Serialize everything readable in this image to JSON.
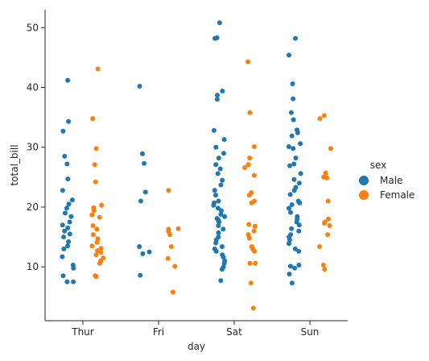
{
  "chart_data": {
    "type": "scatter",
    "title": "",
    "xlabel": "day",
    "ylabel": "total_bill",
    "categories": [
      "Thur",
      "Fri",
      "Sat",
      "Sun"
    ],
    "y_ticks": [
      10,
      20,
      30,
      40,
      50
    ],
    "ylim": [
      1,
      53
    ],
    "grid": false,
    "legend": {
      "title": "sex",
      "position": "right"
    },
    "series": [
      {
        "name": "Male",
        "color": "#1f77b4",
        "points": [
          {
            "day": "Thur",
            "total_bill": 41.2
          },
          {
            "day": "Thur",
            "total_bill": 34.3
          },
          {
            "day": "Thur",
            "total_bill": 32.7
          },
          {
            "day": "Thur",
            "total_bill": 28.5
          },
          {
            "day": "Thur",
            "total_bill": 27.2
          },
          {
            "day": "Thur",
            "total_bill": 24.7
          },
          {
            "day": "Thur",
            "total_bill": 22.8
          },
          {
            "day": "Thur",
            "total_bill": 21.2
          },
          {
            "day": "Thur",
            "total_bill": 20.5
          },
          {
            "day": "Thur",
            "total_bill": 19.8
          },
          {
            "day": "Thur",
            "total_bill": 19.0
          },
          {
            "day": "Thur",
            "total_bill": 18.4
          },
          {
            "day": "Thur",
            "total_bill": 17.5
          },
          {
            "day": "Thur",
            "total_bill": 17.0
          },
          {
            "day": "Thur",
            "total_bill": 16.5
          },
          {
            "day": "Thur",
            "total_bill": 16.0
          },
          {
            "day": "Thur",
            "total_bill": 15.5
          },
          {
            "day": "Thur",
            "total_bill": 15.0
          },
          {
            "day": "Thur",
            "total_bill": 14.2
          },
          {
            "day": "Thur",
            "total_bill": 13.5
          },
          {
            "day": "Thur",
            "total_bill": 13.0
          },
          {
            "day": "Thur",
            "total_bill": 11.7
          },
          {
            "day": "Thur",
            "total_bill": 10.3
          },
          {
            "day": "Thur",
            "total_bill": 9.8
          },
          {
            "day": "Thur",
            "total_bill": 8.5
          },
          {
            "day": "Thur",
            "total_bill": 7.5
          },
          {
            "day": "Thur",
            "total_bill": 7.5
          },
          {
            "day": "Fri",
            "total_bill": 40.2
          },
          {
            "day": "Fri",
            "total_bill": 28.9
          },
          {
            "day": "Fri",
            "total_bill": 27.3
          },
          {
            "day": "Fri",
            "total_bill": 22.5
          },
          {
            "day": "Fri",
            "total_bill": 21.0
          },
          {
            "day": "Fri",
            "total_bill": 13.4
          },
          {
            "day": "Fri",
            "total_bill": 12.5
          },
          {
            "day": "Fri",
            "total_bill": 12.2
          },
          {
            "day": "Fri",
            "total_bill": 8.6
          },
          {
            "day": "Sat",
            "total_bill": 50.8
          },
          {
            "day": "Sat",
            "total_bill": 48.3
          },
          {
            "day": "Sat",
            "total_bill": 48.2
          },
          {
            "day": "Sat",
            "total_bill": 39.4
          },
          {
            "day": "Sat",
            "total_bill": 38.7
          },
          {
            "day": "Sat",
            "total_bill": 38.0
          },
          {
            "day": "Sat",
            "total_bill": 32.8
          },
          {
            "day": "Sat",
            "total_bill": 31.3
          },
          {
            "day": "Sat",
            "total_bill": 30.0
          },
          {
            "day": "Sat",
            "total_bill": 29.0
          },
          {
            "day": "Sat",
            "total_bill": 28.2
          },
          {
            "day": "Sat",
            "total_bill": 27.1
          },
          {
            "day": "Sat",
            "total_bill": 26.4
          },
          {
            "day": "Sat",
            "total_bill": 25.6
          },
          {
            "day": "Sat",
            "total_bill": 24.5
          },
          {
            "day": "Sat",
            "total_bill": 23.7
          },
          {
            "day": "Sat",
            "total_bill": 22.8
          },
          {
            "day": "Sat",
            "total_bill": 22.0
          },
          {
            "day": "Sat",
            "total_bill": 21.0
          },
          {
            "day": "Sat",
            "total_bill": 20.7
          },
          {
            "day": "Sat",
            "total_bill": 20.3
          },
          {
            "day": "Sat",
            "total_bill": 19.8
          },
          {
            "day": "Sat",
            "total_bill": 19.4
          },
          {
            "day": "Sat",
            "total_bill": 18.8
          },
          {
            "day": "Sat",
            "total_bill": 18.4
          },
          {
            "day": "Sat",
            "total_bill": 18.1
          },
          {
            "day": "Sat",
            "total_bill": 17.8
          },
          {
            "day": "Sat",
            "total_bill": 17.5
          },
          {
            "day": "Sat",
            "total_bill": 16.9
          },
          {
            "day": "Sat",
            "total_bill": 16.3
          },
          {
            "day": "Sat",
            "total_bill": 15.7
          },
          {
            "day": "Sat",
            "total_bill": 15.0
          },
          {
            "day": "Sat",
            "total_bill": 14.5
          },
          {
            "day": "Sat",
            "total_bill": 14.0
          },
          {
            "day": "Sat",
            "total_bill": 13.4
          },
          {
            "day": "Sat",
            "total_bill": 13.0
          },
          {
            "day": "Sat",
            "total_bill": 12.6
          },
          {
            "day": "Sat",
            "total_bill": 12.0
          },
          {
            "day": "Sat",
            "total_bill": 11.6
          },
          {
            "day": "Sat",
            "total_bill": 11.0
          },
          {
            "day": "Sat",
            "total_bill": 10.6
          },
          {
            "day": "Sat",
            "total_bill": 10.0
          },
          {
            "day": "Sat",
            "total_bill": 9.6
          },
          {
            "day": "Sat",
            "total_bill": 7.7
          },
          {
            "day": "Sun",
            "total_bill": 48.2
          },
          {
            "day": "Sun",
            "total_bill": 45.4
          },
          {
            "day": "Sun",
            "total_bill": 40.6
          },
          {
            "day": "Sun",
            "total_bill": 38.1
          },
          {
            "day": "Sun",
            "total_bill": 35.8
          },
          {
            "day": "Sun",
            "total_bill": 34.6
          },
          {
            "day": "Sun",
            "total_bill": 32.9
          },
          {
            "day": "Sun",
            "total_bill": 32.4
          },
          {
            "day": "Sun",
            "total_bill": 31.9
          },
          {
            "day": "Sun",
            "total_bill": 30.6
          },
          {
            "day": "Sun",
            "total_bill": 30.1
          },
          {
            "day": "Sun",
            "total_bill": 29.8
          },
          {
            "day": "Sun",
            "total_bill": 28.2
          },
          {
            "day": "Sun",
            "total_bill": 27.2
          },
          {
            "day": "Sun",
            "total_bill": 26.9
          },
          {
            "day": "Sun",
            "total_bill": 25.6
          },
          {
            "day": "Sun",
            "total_bill": 24.6
          },
          {
            "day": "Sun",
            "total_bill": 24.0
          },
          {
            "day": "Sun",
            "total_bill": 23.3
          },
          {
            "day": "Sun",
            "total_bill": 22.8
          },
          {
            "day": "Sun",
            "total_bill": 22.1
          },
          {
            "day": "Sun",
            "total_bill": 21.0
          },
          {
            "day": "Sun",
            "total_bill": 20.7
          },
          {
            "day": "Sun",
            "total_bill": 20.4
          },
          {
            "day": "Sun",
            "total_bill": 19.8
          },
          {
            "day": "Sun",
            "total_bill": 19.1
          },
          {
            "day": "Sun",
            "total_bill": 18.4
          },
          {
            "day": "Sun",
            "total_bill": 18.0
          },
          {
            "day": "Sun",
            "total_bill": 17.5
          },
          {
            "day": "Sun",
            "total_bill": 17.0
          },
          {
            "day": "Sun",
            "total_bill": 16.4
          },
          {
            "day": "Sun",
            "total_bill": 16.0
          },
          {
            "day": "Sun",
            "total_bill": 15.4
          },
          {
            "day": "Sun",
            "total_bill": 15.0
          },
          {
            "day": "Sun",
            "total_bill": 14.5
          },
          {
            "day": "Sun",
            "total_bill": 13.9
          },
          {
            "day": "Sun",
            "total_bill": 13.0
          },
          {
            "day": "Sun",
            "total_bill": 12.6
          },
          {
            "day": "Sun",
            "total_bill": 10.3
          },
          {
            "day": "Sun",
            "total_bill": 10.1
          },
          {
            "day": "Sun",
            "total_bill": 9.8
          },
          {
            "day": "Sun",
            "total_bill": 8.8
          },
          {
            "day": "Sun",
            "total_bill": 7.3
          }
        ]
      },
      {
        "name": "Female",
        "color": "#ff7f0e",
        "points": [
          {
            "day": "Thur",
            "total_bill": 43.1
          },
          {
            "day": "Thur",
            "total_bill": 34.8
          },
          {
            "day": "Thur",
            "total_bill": 29.8
          },
          {
            "day": "Thur",
            "total_bill": 27.1
          },
          {
            "day": "Thur",
            "total_bill": 24.2
          },
          {
            "day": "Thur",
            "total_bill": 20.3
          },
          {
            "day": "Thur",
            "total_bill": 19.9
          },
          {
            "day": "Thur",
            "total_bill": 19.4
          },
          {
            "day": "Thur",
            "total_bill": 18.7
          },
          {
            "day": "Thur",
            "total_bill": 18.3
          },
          {
            "day": "Thur",
            "total_bill": 16.9
          },
          {
            "day": "Thur",
            "total_bill": 16.3
          },
          {
            "day": "Thur",
            "total_bill": 15.4
          },
          {
            "day": "Thur",
            "total_bill": 14.7
          },
          {
            "day": "Thur",
            "total_bill": 14.1
          },
          {
            "day": "Thur",
            "total_bill": 13.5
          },
          {
            "day": "Thur",
            "total_bill": 13.1
          },
          {
            "day": "Thur",
            "total_bill": 12.7
          },
          {
            "day": "Thur",
            "total_bill": 12.4
          },
          {
            "day": "Thur",
            "total_bill": 12.0
          },
          {
            "day": "Thur",
            "total_bill": 11.5
          },
          {
            "day": "Thur",
            "total_bill": 11.0
          },
          {
            "day": "Thur",
            "total_bill": 10.6
          },
          {
            "day": "Thur",
            "total_bill": 8.5
          },
          {
            "day": "Thur",
            "total_bill": 8.4
          },
          {
            "day": "Fri",
            "total_bill": 22.8
          },
          {
            "day": "Fri",
            "total_bill": 16.4
          },
          {
            "day": "Fri",
            "total_bill": 16.3
          },
          {
            "day": "Fri",
            "total_bill": 15.9
          },
          {
            "day": "Fri",
            "total_bill": 15.4
          },
          {
            "day": "Fri",
            "total_bill": 13.4
          },
          {
            "day": "Fri",
            "total_bill": 11.4
          },
          {
            "day": "Fri",
            "total_bill": 10.1
          },
          {
            "day": "Fri",
            "total_bill": 5.8
          },
          {
            "day": "Sat",
            "total_bill": 44.3
          },
          {
            "day": "Sat",
            "total_bill": 35.8
          },
          {
            "day": "Sat",
            "total_bill": 30.1
          },
          {
            "day": "Sat",
            "total_bill": 28.2
          },
          {
            "day": "Sat",
            "total_bill": 27.1
          },
          {
            "day": "Sat",
            "total_bill": 26.6
          },
          {
            "day": "Sat",
            "total_bill": 25.3
          },
          {
            "day": "Sat",
            "total_bill": 22.4
          },
          {
            "day": "Sat",
            "total_bill": 22.0
          },
          {
            "day": "Sat",
            "total_bill": 21.0
          },
          {
            "day": "Sat",
            "total_bill": 20.7
          },
          {
            "day": "Sat",
            "total_bill": 17.1
          },
          {
            "day": "Sat",
            "total_bill": 16.8
          },
          {
            "day": "Sat",
            "total_bill": 16.0
          },
          {
            "day": "Sat",
            "total_bill": 15.4
          },
          {
            "day": "Sat",
            "total_bill": 14.8
          },
          {
            "day": "Sat",
            "total_bill": 13.4
          },
          {
            "day": "Sat",
            "total_bill": 13.0
          },
          {
            "day": "Sat",
            "total_bill": 12.6
          },
          {
            "day": "Sat",
            "total_bill": 10.6
          },
          {
            "day": "Sat",
            "total_bill": 10.6
          },
          {
            "day": "Sat",
            "total_bill": 7.3
          },
          {
            "day": "Sat",
            "total_bill": 3.1
          },
          {
            "day": "Sun",
            "total_bill": 35.3
          },
          {
            "day": "Sun",
            "total_bill": 34.8
          },
          {
            "day": "Sun",
            "total_bill": 29.8
          },
          {
            "day": "Sun",
            "total_bill": 25.7
          },
          {
            "day": "Sun",
            "total_bill": 24.9
          },
          {
            "day": "Sun",
            "total_bill": 25.0
          },
          {
            "day": "Sun",
            "total_bill": 21.0
          },
          {
            "day": "Sun",
            "total_bill": 18.0
          },
          {
            "day": "Sun",
            "total_bill": 17.5
          },
          {
            "day": "Sun",
            "total_bill": 17.3
          },
          {
            "day": "Sun",
            "total_bill": 16.9
          },
          {
            "day": "Sun",
            "total_bill": 15.4
          },
          {
            "day": "Sun",
            "total_bill": 13.4
          },
          {
            "day": "Sun",
            "total_bill": 10.3
          },
          {
            "day": "Sun",
            "total_bill": 9.6
          }
        ]
      }
    ]
  }
}
